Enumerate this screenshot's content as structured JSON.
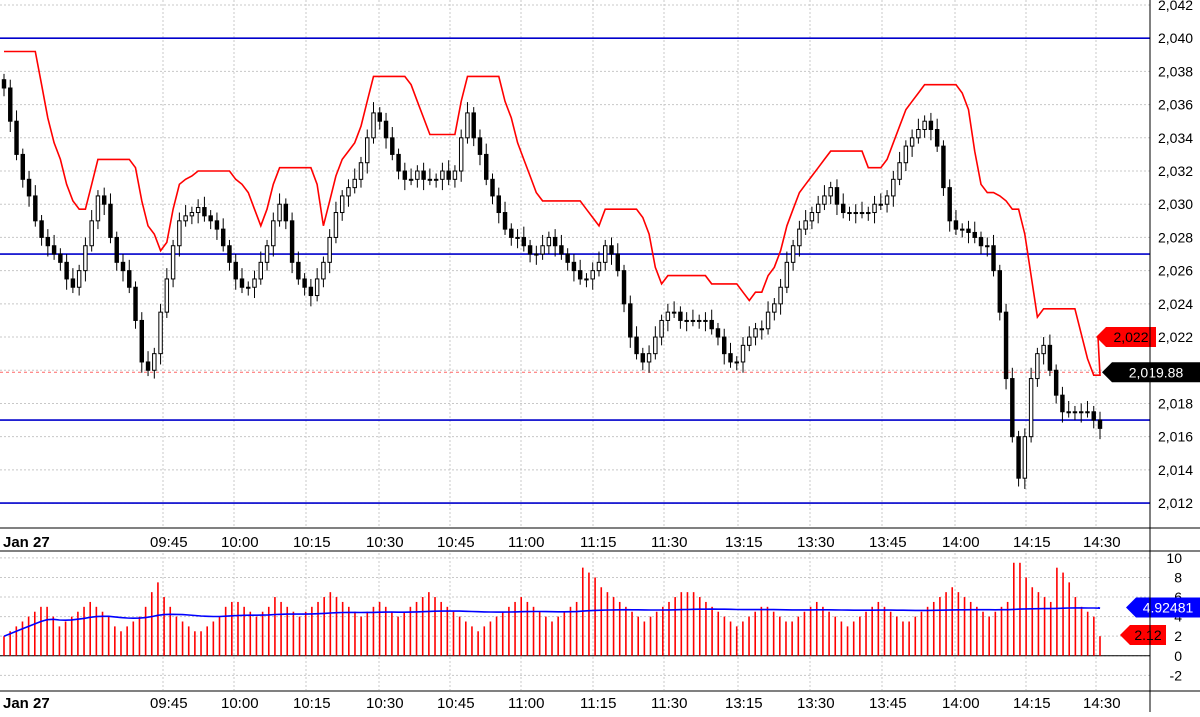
{
  "chart_data": [
    {
      "type": "candlestick",
      "panel": "price",
      "x_labels": [
        "Jan 27",
        "09:45",
        "10:00",
        "10:15",
        "10:30",
        "10:45",
        "11:00",
        "11:15",
        "11:30",
        "13:15",
        "13:30",
        "13:45",
        "14:00",
        "14:15",
        "14:30"
      ],
      "y_ticks": [
        "2,042",
        "2,040",
        "2,038",
        "2,036",
        "2,034",
        "2,032",
        "2,030",
        "2,028",
        "2,026",
        "2,024",
        "2,022",
        "2,020",
        "2,018",
        "2,016",
        "2,014",
        "2,012"
      ],
      "ylim": [
        2010.5,
        2042.3
      ],
      "grid": true,
      "horizontal_levels": [
        2040,
        2027,
        2017,
        2012
      ],
      "current_price": 2019.88,
      "current_price_label": "2,019.88",
      "red_line_last_value": 2022,
      "red_line_last_label": "2,022",
      "close_series": [
        2037.0,
        2035.0,
        2033.0,
        2031.5,
        2030.5,
        2029.0,
        2028.0,
        2027.5,
        2027.0,
        2026.5,
        2025.5,
        2025.0,
        2026.0,
        2027.5,
        2029.0,
        2030.5,
        2030.0,
        2028.0,
        2026.5,
        2026.0,
        2025.0,
        2023.0,
        2020.5,
        2020.0,
        2021.0,
        2023.5,
        2025.5,
        2027.5,
        2029.0,
        2029.3,
        2029.5,
        2029.8,
        2029.3,
        2029.0,
        2028.5,
        2027.5,
        2026.5,
        2025.5,
        2025.0,
        2025.0,
        2025.5,
        2026.5,
        2027.5,
        2029.0,
        2030.0,
        2029.0,
        2026.5,
        2025.5,
        2025.0,
        2024.5,
        2025.5,
        2026.5,
        2028.0,
        2029.5,
        2030.5,
        2031.0,
        2031.5,
        2032.5,
        2034.0,
        2035.5,
        2035.0,
        2034.0,
        2033.0,
        2032.0,
        2031.5,
        2031.5,
        2032.0,
        2031.5,
        2031.5,
        2031.5,
        2032.0,
        2031.5,
        2032.0,
        2034.0,
        2035.5,
        2034.0,
        2033.0,
        2031.5,
        2030.5,
        2029.5,
        2028.5,
        2028.0,
        2028.0,
        2027.5,
        2027.0,
        2027.0,
        2027.5,
        2028.0,
        2027.5,
        2027.0,
        2026.5,
        2026.0,
        2025.5,
        2025.5,
        2026.0,
        2026.5,
        2027.5,
        2027.0,
        2026.0,
        2024.0,
        2022.0,
        2021.0,
        2020.5,
        2021.0,
        2022.0,
        2023.0,
        2023.5,
        2023.5,
        2023.0,
        2023.0,
        2023.0,
        2023.0,
        2023.0,
        2022.5,
        2022.0,
        2021.0,
        2020.5,
        2020.5,
        2021.5,
        2022.0,
        2022.5,
        2022.5,
        2023.5,
        2024.0,
        2025.0,
        2026.5,
        2027.5,
        2028.5,
        2029.0,
        2029.5,
        2030.0,
        2030.5,
        2031.0,
        2030.0,
        2029.5,
        2029.5,
        2029.5,
        2029.5,
        2029.5,
        2030.0,
        2030.0,
        2030.5,
        2031.5,
        2032.5,
        2033.5,
        2034.0,
        2034.5,
        2035.0,
        2034.5,
        2033.5,
        2031.0,
        2029.0,
        2028.5,
        2028.5,
        2028.3,
        2028.0,
        2027.5,
        2027.5,
        2026.0,
        2023.5,
        2019.5,
        2016.0,
        2013.5,
        2016.0,
        2019.5,
        2021.0,
        2021.5,
        2020.0,
        2018.5,
        2017.5,
        2017.5,
        2017.5,
        2017.5,
        2017.5,
        2017.0,
        2016.5
      ]
    },
    {
      "type": "bar",
      "panel": "volume",
      "x_labels": [
        "Jan 27",
        "09:45",
        "10:00",
        "10:15",
        "10:30",
        "10:45",
        "11:00",
        "11:15",
        "11:30",
        "13:15",
        "13:30",
        "13:45",
        "14:00",
        "14:15",
        "14:30"
      ],
      "y_ticks": [
        "10",
        "8",
        "6",
        "4",
        "2",
        "0",
        "-2"
      ],
      "ylim": [
        -3.5,
        10.5
      ],
      "values": [
        2.0,
        2.5,
        3.0,
        3.5,
        4.0,
        4.5,
        5.0,
        5.0,
        4.0,
        3.0,
        3.5,
        4.0,
        4.5,
        5.0,
        5.5,
        5.0,
        4.5,
        4.0,
        3.0,
        2.5,
        3.0,
        3.5,
        4.0,
        5.0,
        6.5,
        7.5,
        6.0,
        5.0,
        4.0,
        3.5,
        3.0,
        2.5,
        2.5,
        3.0,
        3.5,
        4.0,
        5.0,
        5.5,
        5.5,
        5.0,
        4.5,
        4.0,
        4.5,
        5.0,
        6.0,
        5.5,
        5.0,
        4.5,
        4.0,
        4.5,
        5.0,
        5.5,
        6.0,
        6.5,
        6.0,
        5.5,
        5.0,
        4.5,
        4.0,
        4.5,
        5.0,
        5.5,
        5.0,
        4.5,
        4.0,
        4.5,
        5.0,
        5.5,
        6.0,
        6.5,
        6.0,
        5.5,
        5.0,
        4.5,
        4.0,
        3.5,
        3.0,
        2.5,
        3.0,
        3.5,
        4.0,
        4.5,
        5.0,
        5.5,
        6.0,
        5.5,
        5.0,
        4.5,
        4.0,
        3.5,
        4.0,
        4.5,
        5.0,
        5.5,
        9.0,
        8.5,
        8.0,
        7.0,
        6.5,
        6.0,
        5.5,
        5.0,
        4.5,
        4.0,
        3.5,
        4.0,
        4.5,
        5.0,
        5.5,
        6.0,
        6.5,
        6.5,
        6.5,
        6.0,
        5.5,
        5.0,
        4.5,
        4.0,
        3.5,
        3.0,
        3.5,
        4.0,
        4.5,
        5.0,
        5.0,
        4.5,
        4.0,
        3.5,
        3.5,
        4.0,
        4.5,
        5.0,
        5.5,
        5.0,
        4.5,
        4.0,
        3.5,
        3.0,
        3.5,
        4.0,
        4.5,
        5.0,
        5.5,
        5.0,
        4.5,
        4.0,
        3.5,
        3.5,
        4.0,
        4.5,
        5.0,
        5.5,
        6.0,
        6.5,
        7.0,
        6.5,
        6.0,
        5.5,
        5.0,
        4.5,
        4.0,
        4.5,
        5.0,
        5.5,
        9.5,
        9.5,
        8.0,
        7.0,
        6.5,
        6.0,
        5.5,
        9.0,
        8.5,
        7.5,
        6.0,
        5.0,
        4.5,
        4.0,
        2.0
      ],
      "average_line_last_value": 4.92481,
      "average_line_label": "4.92481",
      "last_value": 2.12,
      "last_value_label": "2.12"
    }
  ],
  "colors": {
    "candle": "#000000",
    "red_line": "#ff0000",
    "level_line": "#0000cc",
    "volume_bar": "#ff0000",
    "average_line": "#0000ff",
    "grid": "#c8c8c8",
    "price_tag_bg": "#000000",
    "red_tag_bg": "#ff0000",
    "blue_tag_bg": "#0000ff"
  }
}
